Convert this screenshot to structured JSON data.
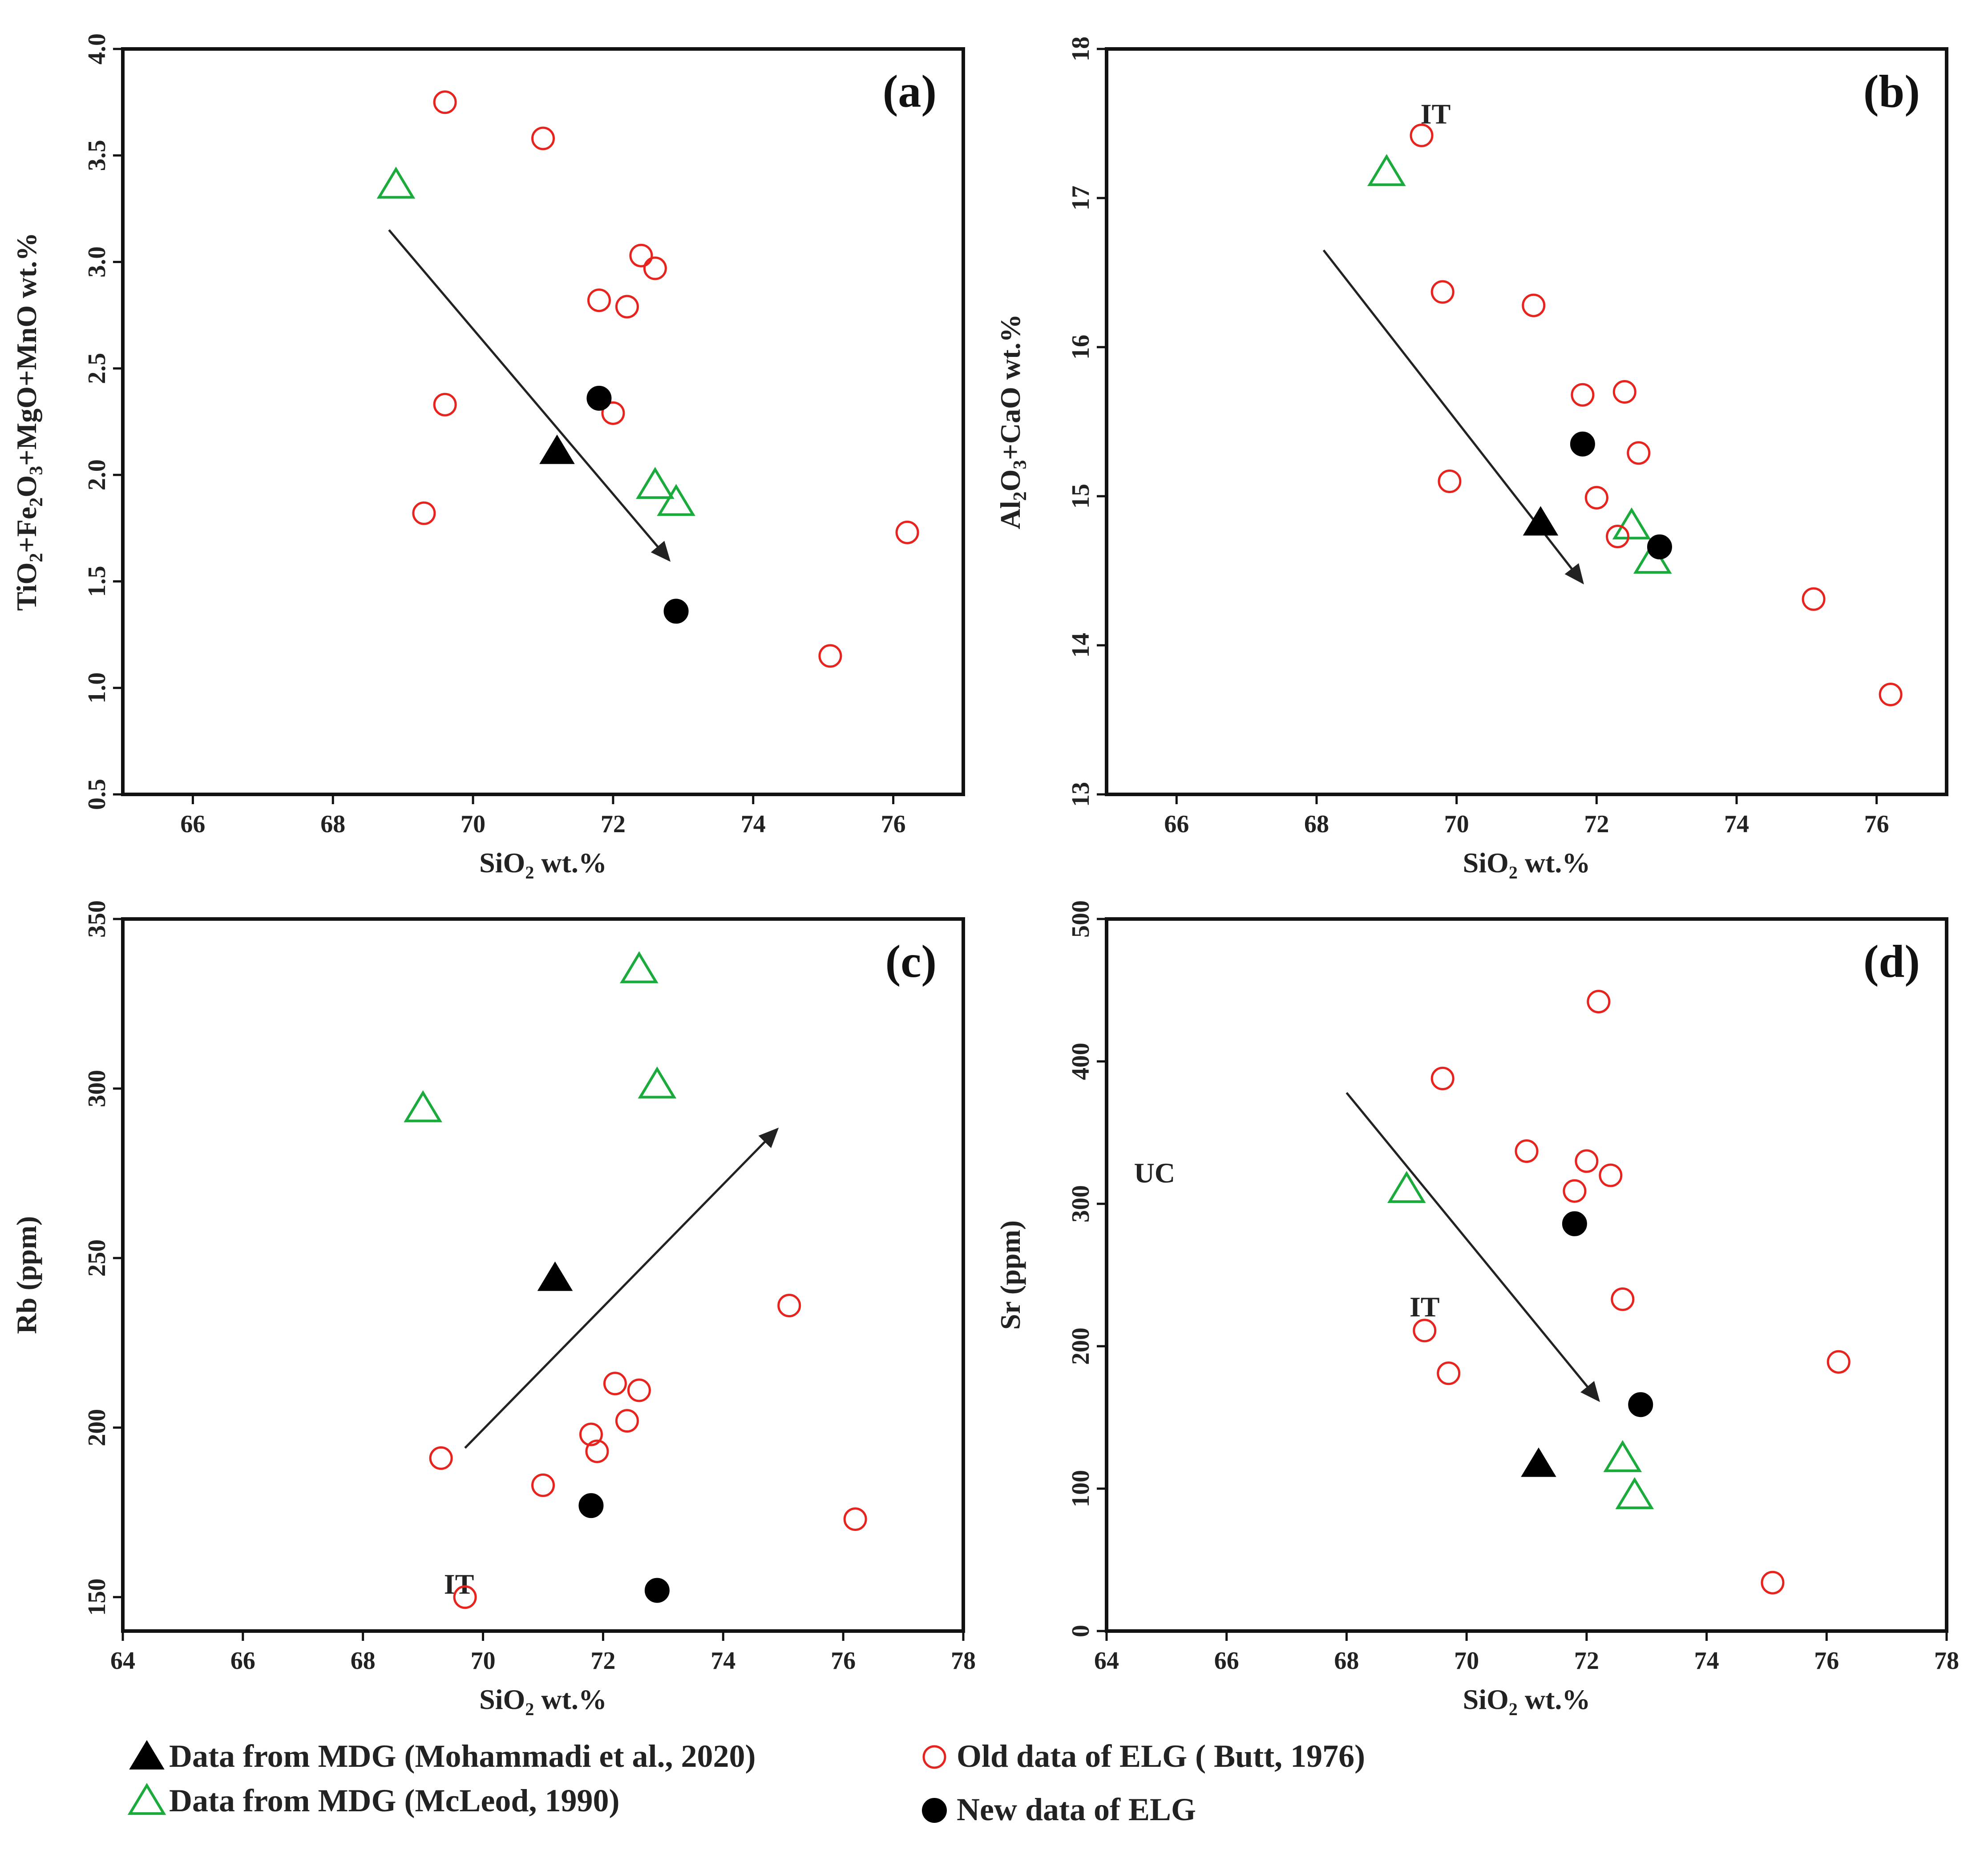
{
  "chart_data": [
    {
      "id": "a",
      "type": "scatter",
      "panel_tag": "(a)",
      "xlabel": {
        "main": "SiO",
        "sub": "2",
        "tail": " wt.%"
      },
      "ylabel": [
        {
          "t": "TiO"
        },
        {
          "t": "2",
          "sub": true
        },
        {
          "t": "+Fe"
        },
        {
          "t": "2",
          "sub": true
        },
        {
          "t": "O"
        },
        {
          "t": "3",
          "sub": true
        },
        {
          "t": "+MgO+MnO wt.%"
        }
      ],
      "xlim": [
        65,
        77
      ],
      "ylim": [
        0.5,
        4.0
      ],
      "xticks": [
        "66",
        "68",
        "70",
        "72",
        "74",
        "76"
      ],
      "yticks": [
        "0.5",
        "1.0",
        "1.5",
        "2.0",
        "2.5",
        "3.0",
        "3.5",
        "4.0"
      ],
      "series": [
        {
          "name": "Data from MDG (Mohammadi et al., 2020)",
          "marker": "triangle-filled",
          "color": "#000000",
          "points": [
            [
              71.2,
              2.11
            ]
          ]
        },
        {
          "name": "Data from MDG (McLeod, 1990)",
          "marker": "triangle-open",
          "color": "#1aab3c",
          "points": [
            [
              68.9,
              3.36
            ],
            [
              72.6,
              1.95
            ],
            [
              72.9,
              1.87
            ]
          ]
        },
        {
          "name": "Old data of ELG ( Butt, 1976)",
          "marker": "circle-open",
          "color": "#e8231d",
          "points": [
            [
              69.6,
              3.75
            ],
            [
              71.0,
              3.58
            ],
            [
              72.4,
              3.03
            ],
            [
              72.6,
              2.97
            ],
            [
              71.8,
              2.82
            ],
            [
              72.2,
              2.79
            ],
            [
              69.6,
              2.33
            ],
            [
              72.0,
              2.29
            ],
            [
              69.3,
              1.82
            ],
            [
              76.2,
              1.73
            ],
            [
              75.1,
              1.15
            ]
          ]
        },
        {
          "name": "New data of ELG",
          "marker": "circle-filled",
          "color": "#000000",
          "points": [
            [
              71.8,
              2.36
            ],
            [
              72.9,
              1.36
            ]
          ]
        }
      ],
      "arrow": {
        "from": [
          68.8,
          3.15
        ],
        "to": [
          72.8,
          1.6
        ]
      },
      "annotations": []
    },
    {
      "id": "b",
      "type": "scatter",
      "panel_tag": "(b)",
      "xlabel": {
        "main": "SiO",
        "sub": "2",
        "tail": " wt.%"
      },
      "ylabel": [
        {
          "t": "Al"
        },
        {
          "t": "2",
          "sub": true
        },
        {
          "t": "O"
        },
        {
          "t": "3",
          "sub": true
        },
        {
          "t": "+CaO wt.%"
        }
      ],
      "xlim": [
        65,
        77
      ],
      "ylim": [
        13,
        18
      ],
      "xticks": [
        "66",
        "68",
        "70",
        "72",
        "74",
        "76"
      ],
      "yticks": [
        "13",
        "14",
        "15",
        "16",
        "17",
        "18"
      ],
      "series": [
        {
          "name": "Data from MDG (Mohammadi et al., 2020)",
          "marker": "triangle-filled",
          "color": "#000000",
          "points": [
            [
              71.2,
              14.82
            ]
          ]
        },
        {
          "name": "Data from MDG (McLeod, 1990)",
          "marker": "triangle-open",
          "color": "#1aab3c",
          "points": [
            [
              69.0,
              17.17
            ],
            [
              72.5,
              14.8
            ],
            [
              72.8,
              14.57
            ]
          ]
        },
        {
          "name": "Old data of ELG ( Butt, 1976)",
          "marker": "circle-open",
          "color": "#e8231d",
          "points": [
            [
              69.5,
              17.42
            ],
            [
              69.8,
              16.37
            ],
            [
              71.1,
              16.28
            ],
            [
              71.8,
              15.68
            ],
            [
              72.4,
              15.7
            ],
            [
              72.6,
              15.29
            ],
            [
              69.9,
              15.1
            ],
            [
              72.0,
              14.99
            ],
            [
              72.3,
              14.73
            ],
            [
              75.1,
              14.31
            ],
            [
              76.2,
              13.67
            ]
          ]
        },
        {
          "name": "New data of ELG",
          "marker": "circle-filled",
          "color": "#000000",
          "points": [
            [
              71.8,
              15.35
            ],
            [
              72.9,
              14.66
            ]
          ]
        }
      ],
      "arrow": {
        "from": [
          68.1,
          16.65
        ],
        "to": [
          71.8,
          14.42
        ]
      },
      "annotations": [
        {
          "text": "IT",
          "x": 69.7,
          "y": 17.5
        }
      ]
    },
    {
      "id": "c",
      "type": "scatter",
      "panel_tag": "(c)",
      "xlabel": {
        "main": "SiO",
        "sub": "2",
        "tail": " wt.%"
      },
      "ylabel": [
        {
          "t": "Rb (ppm)"
        }
      ],
      "xlim": [
        64,
        78
      ],
      "ylim": [
        140,
        350
      ],
      "xticks": [
        "64",
        "66",
        "68",
        "70",
        "72",
        "74",
        "76",
        "78"
      ],
      "yticks": [
        "150",
        "200",
        "250",
        "300",
        "350"
      ],
      "series": [
        {
          "name": "Data from MDG (Mohammadi et al., 2020)",
          "marker": "triangle-filled",
          "color": "#000000",
          "points": [
            [
              71.2,
              244
            ]
          ]
        },
        {
          "name": "Data from MDG (McLeod, 1990)",
          "marker": "triangle-open",
          "color": "#1aab3c",
          "points": [
            [
              69.0,
              294
            ],
            [
              72.6,
              335
            ],
            [
              72.9,
              301
            ]
          ]
        },
        {
          "name": "Old data of ELG ( Butt, 1976)",
          "marker": "circle-open",
          "color": "#e8231d",
          "points": [
            [
              75.1,
              236
            ],
            [
              72.2,
              213
            ],
            [
              72.6,
              211
            ],
            [
              72.4,
              202
            ],
            [
              71.8,
              198
            ],
            [
              71.9,
              193
            ],
            [
              69.3,
              191
            ],
            [
              71.0,
              183
            ],
            [
              76.2,
              173
            ],
            [
              69.7,
              150
            ]
          ]
        },
        {
          "name": "New data of ELG",
          "marker": "circle-filled",
          "color": "#000000",
          "points": [
            [
              71.8,
              177
            ],
            [
              72.9,
              152
            ]
          ]
        }
      ],
      "arrow": {
        "from": [
          69.7,
          194
        ],
        "to": [
          74.9,
          288
        ]
      },
      "annotations": [
        {
          "text": "IT",
          "x": 69.6,
          "y": 151
        }
      ]
    },
    {
      "id": "d",
      "type": "scatter",
      "panel_tag": "(d)",
      "xlabel": {
        "main": "SiO",
        "sub": "2",
        "tail": " wt.%"
      },
      "ylabel": [
        {
          "t": "Sr (ppm)"
        }
      ],
      "xlim": [
        64,
        78
      ],
      "ylim": [
        0,
        500
      ],
      "xticks": [
        "64",
        "66",
        "68",
        "70",
        "72",
        "74",
        "76",
        "78"
      ],
      "yticks": [
        "0",
        "100",
        "200",
        "300",
        "400",
        "500"
      ],
      "series": [
        {
          "name": "Data from MDG (Mohammadi et al., 2020)",
          "marker": "triangle-filled",
          "color": "#000000",
          "points": [
            [
              71.2,
              117
            ]
          ]
        },
        {
          "name": "Data from MDG (McLeod, 1990)",
          "marker": "triangle-open",
          "color": "#1aab3c",
          "points": [
            [
              69.0,
              310
            ],
            [
              72.6,
              121
            ],
            [
              72.8,
              95
            ]
          ]
        },
        {
          "name": "Old data of ELG ( Butt, 1976)",
          "marker": "circle-open",
          "color": "#e8231d",
          "points": [
            [
              72.2,
              442
            ],
            [
              69.6,
              388
            ],
            [
              71.0,
              337
            ],
            [
              72.0,
              330
            ],
            [
              72.4,
              320
            ],
            [
              71.8,
              309
            ],
            [
              72.6,
              233
            ],
            [
              69.3,
              211
            ],
            [
              69.7,
              181
            ],
            [
              76.2,
              189
            ],
            [
              75.1,
              34
            ]
          ]
        },
        {
          "name": "New data of ELG",
          "marker": "circle-filled",
          "color": "#000000",
          "points": [
            [
              71.8,
              286
            ],
            [
              72.9,
              159
            ]
          ]
        }
      ],
      "arrow": {
        "from": [
          68.0,
          378
        ],
        "to": [
          72.2,
          162
        ]
      },
      "annotations": [
        {
          "text": "IT",
          "x": 69.3,
          "y": 221
        },
        {
          "text": "UC",
          "x": 64.8,
          "y": 315
        }
      ]
    }
  ],
  "legend": [
    {
      "marker": "triangle-filled",
      "color": "#000000",
      "label": "Data from MDG (Mohammadi et al., 2020)"
    },
    {
      "marker": "triangle-open",
      "color": "#1aab3c",
      "label": "Data from MDG (McLeod, 1990)"
    },
    {
      "marker": "circle-open",
      "color": "#e8231d",
      "label": "Old data of ELG ( Butt, 1976)"
    },
    {
      "marker": "circle-filled",
      "color": "#000000",
      "label": "New data of ELG"
    }
  ]
}
